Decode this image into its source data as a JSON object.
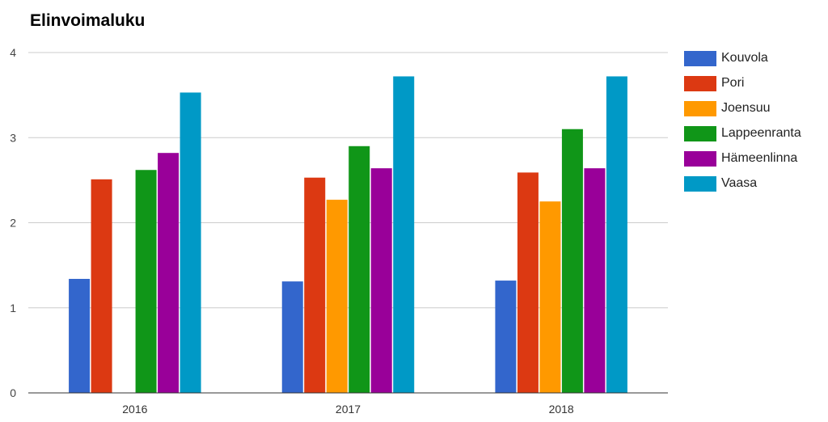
{
  "chart_data": {
    "type": "bar",
    "title": "Elinvoimaluku",
    "xlabel": "",
    "ylabel": "",
    "categories": [
      "2016",
      "2017",
      "2018"
    ],
    "ylim": [
      0,
      4
    ],
    "yticks": [
      "0",
      "1",
      "2",
      "3",
      "4"
    ],
    "grid": true,
    "legend_position": "right",
    "series": [
      {
        "name": "Kouvola",
        "color": "#3366cc",
        "values": [
          1.34,
          1.31,
          1.32
        ]
      },
      {
        "name": "Pori",
        "color": "#dc3912",
        "values": [
          2.51,
          2.53,
          2.59
        ]
      },
      {
        "name": "Joensuu",
        "color": "#ff9900",
        "values": [
          null,
          2.27,
          2.25
        ]
      },
      {
        "name": "Lappeenranta",
        "color": "#109618",
        "values": [
          2.62,
          2.9,
          3.1
        ]
      },
      {
        "name": "Hämeenlinna",
        "color": "#990099",
        "values": [
          2.82,
          2.64,
          2.64
        ]
      },
      {
        "name": "Vaasa",
        "color": "#0099c6",
        "values": [
          3.53,
          3.72,
          3.72
        ]
      }
    ]
  }
}
